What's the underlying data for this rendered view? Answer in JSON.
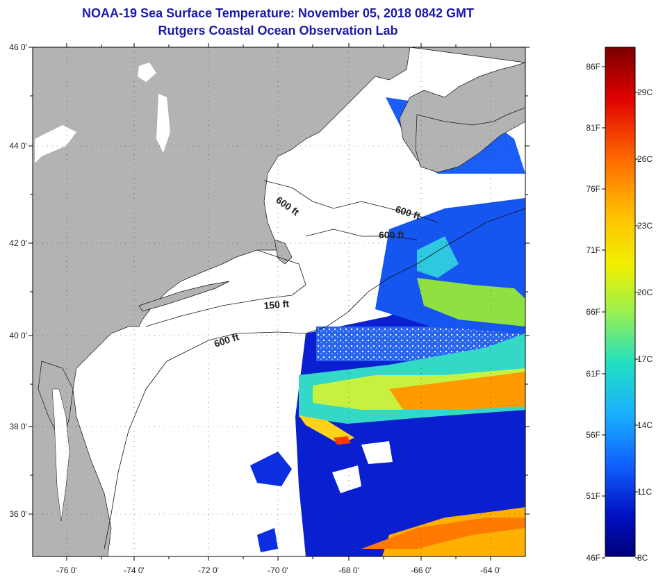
{
  "title": {
    "line1": "NOAA-19 Sea Surface Temperature:  November 05, 2018 0842 GMT",
    "line2": "Rutgers Coastal Ocean Observation Lab"
  },
  "map": {
    "lon_labels": [
      "-76 0'",
      "-74 0'",
      "-72 0'",
      "-70 0'",
      "-68 0'",
      "-66 0'",
      "-64 0'"
    ],
    "lat_labels": [
      "46 0'",
      "44 0'",
      "42 0'",
      "40 0'",
      "38 0'",
      "36 0'"
    ],
    "contour_labels": [
      "600 ft",
      "600 ft",
      "600 ft",
      "150 ft",
      "600 ft"
    ],
    "land_color": "#b3b3b3",
    "cloud_color": "#ffffff"
  },
  "colorbar": {
    "fahrenheit_labels": [
      "86F",
      "81F",
      "76F",
      "71F",
      "66F",
      "61F",
      "56F",
      "51F",
      "46F"
    ],
    "celsius_labels": [
      "29C",
      "26C",
      "23C",
      "20C",
      "17C",
      "14C",
      "11C",
      "8C"
    ],
    "colors": [
      "#7a0000",
      "#e00000",
      "#ff6a00",
      "#ffc000",
      "#f0f000",
      "#9af050",
      "#20e0c0",
      "#1ab0ff",
      "#1060ff",
      "#0010c0",
      "#00007a"
    ]
  }
}
